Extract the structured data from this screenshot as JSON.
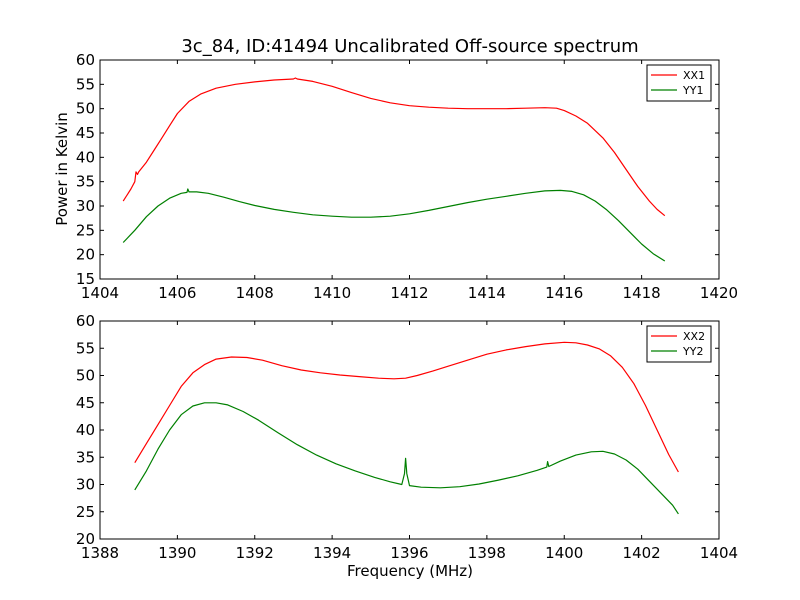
{
  "figure": {
    "title": "3c_84, ID:41494 Uncalibrated Off-source spectrum",
    "xlabel": "Frequency (MHz)",
    "ylabel_top": "Power in Kelvin"
  },
  "chart_data": [
    {
      "type": "line",
      "title": "3c_84, ID:41494 Uncalibrated Off-source spectrum",
      "xlabel": "",
      "ylabel": "Power in Kelvin",
      "xlim": [
        1404,
        1420
      ],
      "ylim": [
        15,
        60
      ],
      "xticks": [
        1404,
        1406,
        1408,
        1410,
        1412,
        1414,
        1416,
        1418,
        1420
      ],
      "yticks": [
        15,
        20,
        25,
        30,
        35,
        40,
        45,
        50,
        55,
        60
      ],
      "grid": false,
      "legend": "top-right",
      "series": [
        {
          "name": "XX1",
          "color": "#ff0000",
          "x": [
            1404.6,
            1404.8,
            1404.9,
            1404.93,
            1404.97,
            1405.0,
            1405.2,
            1405.4,
            1405.6,
            1405.8,
            1406.0,
            1406.3,
            1406.6,
            1407.0,
            1407.5,
            1408.0,
            1408.5,
            1409.0,
            1409.05,
            1409.1,
            1409.5,
            1410.0,
            1410.5,
            1411.0,
            1411.5,
            1412.0,
            1412.5,
            1413.0,
            1413.5,
            1414.0,
            1414.5,
            1415.0,
            1415.5,
            1415.8,
            1416.0,
            1416.3,
            1416.6,
            1417.0,
            1417.3,
            1417.6,
            1417.9,
            1418.2,
            1418.4,
            1418.6
          ],
          "y": [
            31,
            33.5,
            35,
            37,
            36.5,
            37,
            39,
            41.5,
            44,
            46.5,
            49,
            51.5,
            53,
            54.2,
            55,
            55.5,
            55.9,
            56.1,
            56.3,
            56.1,
            55.6,
            54.6,
            53.3,
            52.1,
            51.2,
            50.6,
            50.3,
            50.1,
            50.0,
            50.0,
            50.0,
            50.1,
            50.2,
            50.1,
            49.6,
            48.5,
            47,
            44,
            41,
            37.5,
            34,
            31,
            29.3,
            28
          ]
        },
        {
          "name": "YY1",
          "color": "#008000",
          "x": [
            1404.6,
            1404.9,
            1405.2,
            1405.5,
            1405.8,
            1406.1,
            1406.25,
            1406.27,
            1406.3,
            1406.5,
            1406.8,
            1407.2,
            1407.6,
            1408.0,
            1408.5,
            1409.0,
            1409.5,
            1410.0,
            1410.5,
            1411.0,
            1411.5,
            1412.0,
            1412.5,
            1413.0,
            1413.5,
            1414.0,
            1414.5,
            1415.0,
            1415.5,
            1415.9,
            1416.2,
            1416.5,
            1416.8,
            1417.1,
            1417.4,
            1417.7,
            1418.0,
            1418.3,
            1418.6
          ],
          "y": [
            22.5,
            25,
            27.8,
            30,
            31.6,
            32.6,
            32.8,
            33.5,
            32.9,
            32.9,
            32.6,
            31.8,
            30.9,
            30.1,
            29.3,
            28.7,
            28.2,
            27.9,
            27.7,
            27.7,
            27.9,
            28.4,
            29.1,
            29.9,
            30.7,
            31.4,
            32.0,
            32.6,
            33.1,
            33.2,
            33.0,
            32.3,
            31.0,
            29.2,
            27.0,
            24.6,
            22.2,
            20.2,
            18.7
          ]
        }
      ]
    },
    {
      "type": "line",
      "title": "",
      "xlabel": "Frequency (MHz)",
      "ylabel": "",
      "xlim": [
        1388,
        1404
      ],
      "ylim": [
        20,
        60
      ],
      "xticks": [
        1388,
        1390,
        1392,
        1394,
        1396,
        1398,
        1400,
        1402,
        1404
      ],
      "yticks": [
        20,
        25,
        30,
        35,
        40,
        45,
        50,
        55,
        60
      ],
      "grid": false,
      "legend": "top-right",
      "series": [
        {
          "name": "XX2",
          "color": "#ff0000",
          "x": [
            1388.9,
            1389.2,
            1389.5,
            1389.8,
            1390.1,
            1390.4,
            1390.7,
            1391.0,
            1391.4,
            1391.8,
            1392.2,
            1392.7,
            1393.2,
            1393.7,
            1394.2,
            1394.7,
            1395.2,
            1395.6,
            1395.9,
            1396.2,
            1396.6,
            1397.0,
            1397.5,
            1398.0,
            1398.5,
            1399.0,
            1399.5,
            1400.0,
            1400.3,
            1400.6,
            1400.9,
            1401.2,
            1401.5,
            1401.8,
            1402.1,
            1402.4,
            1402.7,
            1402.95
          ],
          "y": [
            34,
            37.5,
            41,
            44.5,
            48,
            50.5,
            52,
            53,
            53.4,
            53.3,
            52.8,
            51.8,
            51.0,
            50.5,
            50.1,
            49.8,
            49.5,
            49.4,
            49.5,
            50.0,
            50.8,
            51.7,
            52.8,
            53.9,
            54.7,
            55.3,
            55.8,
            56.1,
            56.0,
            55.6,
            54.9,
            53.6,
            51.5,
            48.5,
            44.5,
            40,
            35.5,
            32.3
          ]
        },
        {
          "name": "YY2",
          "color": "#008000",
          "x": [
            1388.9,
            1389.2,
            1389.5,
            1389.8,
            1390.1,
            1390.4,
            1390.7,
            1391.0,
            1391.3,
            1391.7,
            1392.1,
            1392.6,
            1393.1,
            1393.6,
            1394.1,
            1394.6,
            1395.1,
            1395.5,
            1395.8,
            1395.87,
            1395.9,
            1395.93,
            1396.0,
            1396.3,
            1396.8,
            1397.3,
            1397.8,
            1398.3,
            1398.8,
            1399.3,
            1399.55,
            1399.57,
            1399.6,
            1399.9,
            1400.3,
            1400.7,
            1401.0,
            1401.3,
            1401.6,
            1401.9,
            1402.2,
            1402.5,
            1402.8,
            1402.95
          ],
          "y": [
            29,
            32.5,
            36.5,
            40,
            42.8,
            44.4,
            45.0,
            45.0,
            44.6,
            43.4,
            41.8,
            39.5,
            37.3,
            35.4,
            33.8,
            32.5,
            31.3,
            30.5,
            30.0,
            32.0,
            34.8,
            32.0,
            29.8,
            29.5,
            29.4,
            29.6,
            30.1,
            30.8,
            31.6,
            32.6,
            33.2,
            34.2,
            33.3,
            34.3,
            35.4,
            36.0,
            36.1,
            35.6,
            34.5,
            32.8,
            30.6,
            28.4,
            26.2,
            24.6
          ]
        }
      ]
    }
  ]
}
